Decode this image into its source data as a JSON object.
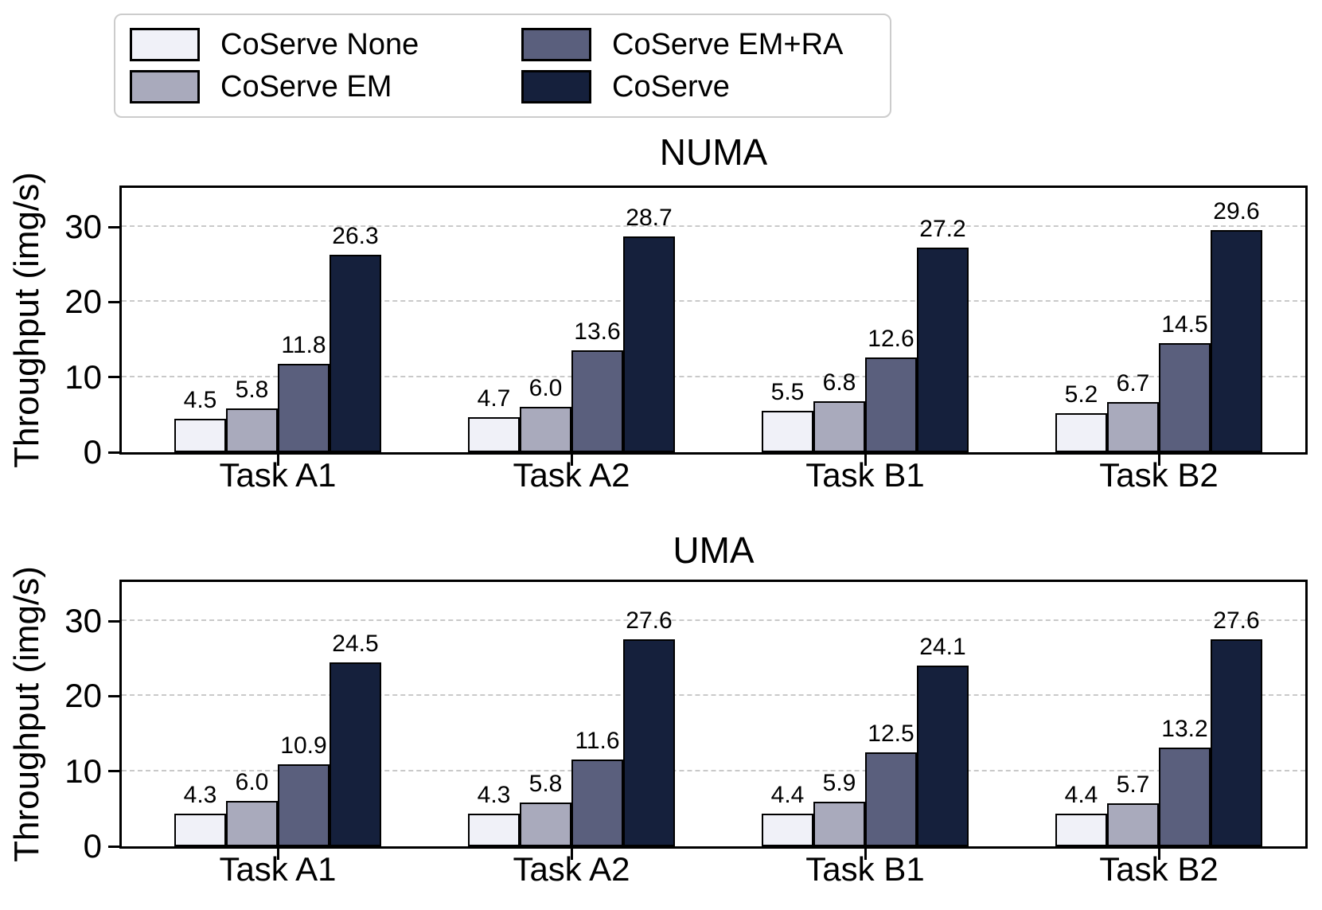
{
  "legend": {
    "items": [
      {
        "label": "CoServe None",
        "color": "#f0f1f8"
      },
      {
        "label": "CoServe EM+RA",
        "color": "#5a5f7d"
      },
      {
        "label": "CoServe EM",
        "color": "#a9aabc"
      },
      {
        "label": "CoServe",
        "color": "#15203c"
      }
    ]
  },
  "chart_data": [
    {
      "type": "bar",
      "title": "NUMA",
      "ylabel": "Throughput (img/s)",
      "categories": [
        "Task A1",
        "Task A2",
        "Task B1",
        "Task B2"
      ],
      "yticks": [
        0,
        10,
        20,
        30
      ],
      "ylim": [
        0,
        35.2
      ],
      "grid": "horizontal-dashed",
      "legend_position": "above-figure",
      "series": [
        {
          "name": "CoServe None",
          "color": "#f0f1f8",
          "values": [
            4.5,
            4.7,
            5.5,
            5.2
          ],
          "value_labels": [
            "4.5",
            "4.7",
            "5.5",
            "5.2"
          ]
        },
        {
          "name": "CoServe EM",
          "color": "#a9aabc",
          "values": [
            5.8,
            6.0,
            6.8,
            6.7
          ],
          "value_labels": [
            "5.8",
            "6.0",
            "6.8",
            "6.7"
          ]
        },
        {
          "name": "CoServe EM+RA",
          "color": "#5a5f7d",
          "values": [
            11.8,
            13.6,
            12.6,
            14.5
          ],
          "value_labels": [
            "11.8",
            "13.6",
            "12.6",
            "14.5"
          ]
        },
        {
          "name": "CoServe",
          "color": "#15203c",
          "values": [
            26.3,
            28.7,
            27.2,
            29.6
          ],
          "value_labels": [
            "26.3",
            "28.7",
            "27.2",
            "29.6"
          ]
        }
      ]
    },
    {
      "type": "bar",
      "title": "UMA",
      "ylabel": "Throughput (img/s)",
      "categories": [
        "Task A1",
        "Task A2",
        "Task B1",
        "Task B2"
      ],
      "yticks": [
        0,
        10,
        20,
        30
      ],
      "ylim": [
        0,
        35.2
      ],
      "grid": "horizontal-dashed",
      "legend_position": "above-figure",
      "series": [
        {
          "name": "CoServe None",
          "color": "#f0f1f8",
          "values": [
            4.3,
            4.3,
            4.4,
            4.4
          ],
          "value_labels": [
            "4.3",
            "4.3",
            "4.4",
            "4.4"
          ]
        },
        {
          "name": "CoServe EM",
          "color": "#a9aabc",
          "values": [
            6.0,
            5.8,
            5.9,
            5.7
          ],
          "value_labels": [
            "6.0",
            "5.8",
            "5.9",
            "5.7"
          ]
        },
        {
          "name": "CoServe EM+RA",
          "color": "#5a5f7d",
          "values": [
            10.9,
            11.6,
            12.5,
            13.2
          ],
          "value_labels": [
            "10.9",
            "11.6",
            "12.5",
            "13.2"
          ]
        },
        {
          "name": "CoServe",
          "color": "#15203c",
          "values": [
            24.5,
            27.6,
            24.1,
            27.6
          ],
          "value_labels": [
            "24.5",
            "27.6",
            "24.1",
            "27.6"
          ]
        }
      ]
    }
  ]
}
